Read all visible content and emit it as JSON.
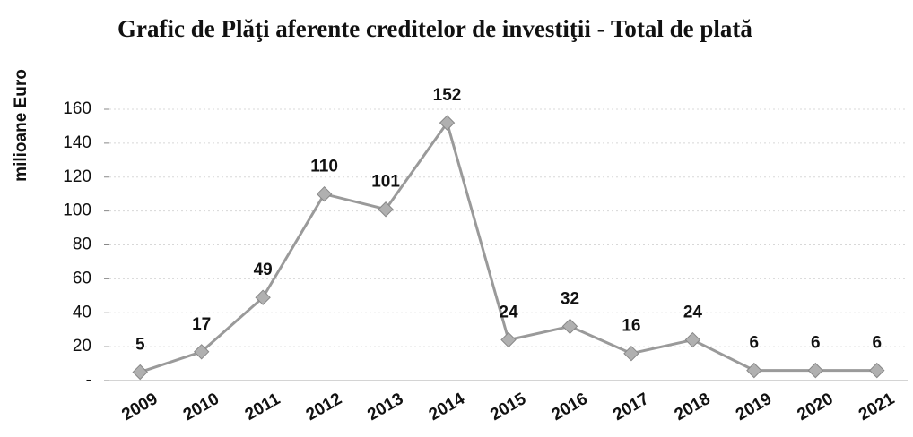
{
  "chart_data": {
    "type": "line",
    "title": "Grafic de Plăţi  aferente creditelor de investiţii - Total de plată",
    "y_label": "milioane Euro",
    "categories": [
      "2009",
      "2010",
      "2011",
      "2012",
      "2013",
      "2014",
      "2015",
      "2016",
      "2017",
      "2018",
      "2019",
      "2020",
      "2021"
    ],
    "values": [
      5,
      17,
      49,
      110,
      101,
      152,
      24,
      32,
      16,
      24,
      6,
      6,
      6
    ],
    "color": "#9a9a9a",
    "ylim": [
      0,
      160
    ],
    "yticks": [
      {
        "value": 0,
        "label": "-"
      },
      20,
      40,
      60,
      80,
      100,
      120,
      140,
      160
    ],
    "grid": true
  }
}
